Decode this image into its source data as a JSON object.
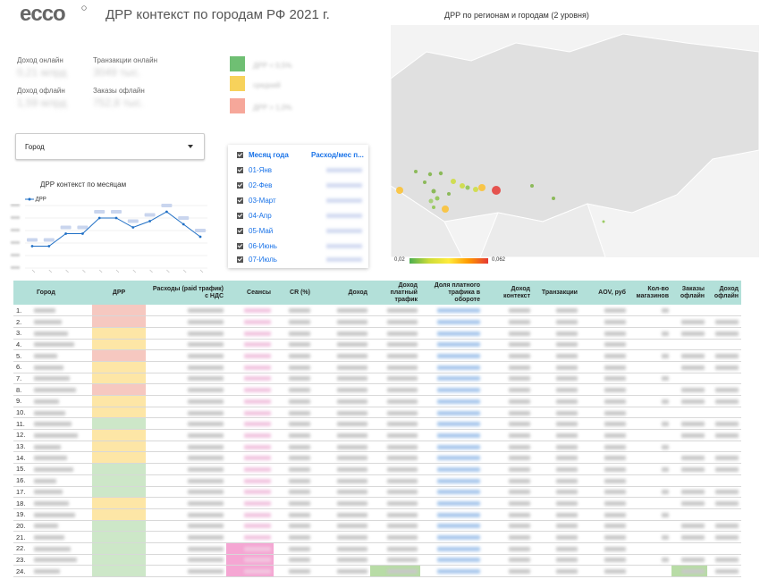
{
  "header": {
    "logo": "ecco",
    "title": "ДРР контекст по городам РФ 2021 г.",
    "map_title": "ДРР по регионам и городам (2 уровня)"
  },
  "kpis": [
    {
      "label": "Доход онлайн"
    },
    {
      "label": "Транзакции онлайн"
    },
    {
      "label": "Доход офлайн"
    },
    {
      "label": "Заказы офлайн"
    }
  ],
  "legend_colors": {
    "good": "#6fbf73",
    "medium": "#f7d25b",
    "bad": "#f6a79a"
  },
  "filter": {
    "city_label": "Город"
  },
  "line_chart": {
    "title": "ДРР контекст по месяцам",
    "legend": "ДРР"
  },
  "month_table": {
    "header_month": "Месяц года",
    "header_spend": "Расход/мес п...",
    "rows": [
      "01-Янв",
      "02-Фев",
      "03-Март",
      "04-Апр",
      "05-Май",
      "06-Июнь",
      "07-Июль"
    ]
  },
  "map_legend": {
    "min": "0,02",
    "max": "0,062"
  },
  "table": {
    "headers": [
      "Город",
      "ДРР",
      "Расходы (paid трафик) с НДС",
      "Сеансы",
      "CR (%)",
      "Доход",
      "Доход платный трафик",
      "Доля платного трафика в обороте",
      "Доход контекст",
      "Транзакции",
      "AOV, руб",
      "Кол-во магазинов",
      "Заказы офлайн",
      "Доход офлайн"
    ],
    "row_numbers": [
      "1.",
      "2.",
      "3.",
      "4.",
      "5.",
      "6.",
      "7.",
      "8.",
      "9.",
      "10.",
      "11.",
      "12.",
      "13.",
      "14.",
      "15.",
      "16.",
      "17.",
      "18.",
      "19.",
      "20.",
      "21.",
      "22.",
      "23.",
      "24."
    ],
    "drr_colors": [
      "red",
      "red",
      "yellow",
      "yellow",
      "red",
      "yellow",
      "yellow",
      "red",
      "yellow",
      "yellow",
      "green",
      "yellow",
      "yellow",
      "yellow",
      "green",
      "green",
      "green",
      "yellow",
      "yellow",
      "green",
      "green",
      "green",
      "green",
      "green"
    ]
  },
  "chart_data": {
    "type": "line",
    "title": "ДРР контекст по месяцам",
    "series": [
      {
        "name": "ДРР",
        "values": [
          0.027,
          0.027,
          0.031,
          0.031,
          0.036,
          0.036,
          0.033,
          0.035,
          0.038,
          0.034,
          0.03
        ]
      }
    ],
    "grid": true
  }
}
